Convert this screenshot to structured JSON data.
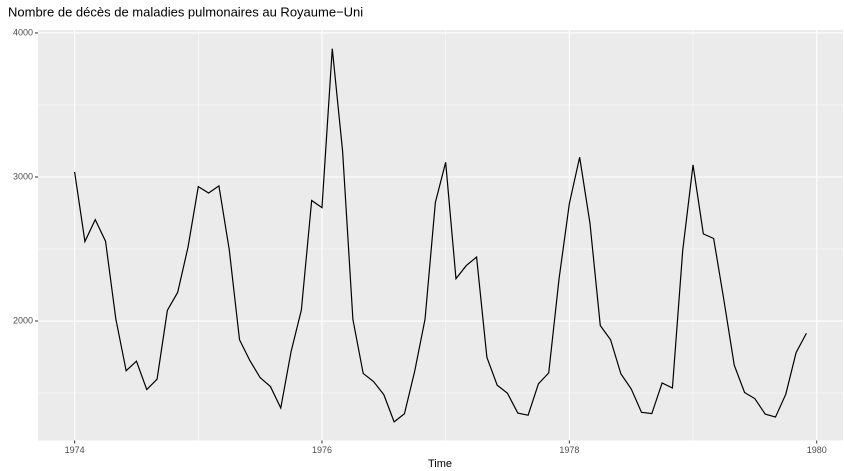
{
  "chart_data": {
    "type": "line",
    "title": "Nombre de décès de maladies pulmonaires au Royaume−Uni",
    "x_label": "Time",
    "x": [
      1974,
      1974.0833,
      1974.1667,
      1974.25,
      1974.3333,
      1974.4167,
      1974.5,
      1974.5833,
      1974.6667,
      1974.75,
      1974.8333,
      1974.9167,
      1975,
      1975.0833,
      1975.1667,
      1975.25,
      1975.3333,
      1975.4167,
      1975.5,
      1975.5833,
      1975.6667,
      1975.75,
      1975.8333,
      1975.9167,
      1976,
      1976.0833,
      1976.1667,
      1976.25,
      1976.3333,
      1976.4167,
      1976.5,
      1976.5833,
      1976.6667,
      1976.75,
      1976.8333,
      1976.9167,
      1977,
      1977.0833,
      1977.1667,
      1977.25,
      1977.3333,
      1977.4167,
      1977.5,
      1977.5833,
      1977.6667,
      1977.75,
      1977.8333,
      1977.9167,
      1978,
      1978.0833,
      1978.1667,
      1978.25,
      1978.3333,
      1978.4167,
      1978.5,
      1978.5833,
      1978.6667,
      1978.75,
      1978.8333,
      1978.9167,
      1979,
      1979.0833,
      1979.1667,
      1979.25,
      1979.3333,
      1979.4167,
      1979.5,
      1979.5833,
      1979.6667,
      1979.75,
      1979.8333,
      1979.9167
    ],
    "series": [
      {
        "color": "#000000",
        "values": [
          3035,
          2552,
          2704,
          2554,
          2014,
          1655,
          1721,
          1524,
          1596,
          2074,
          2199,
          2512,
          2933,
          2889,
          2938,
          2497,
          1870,
          1726,
          1607,
          1545,
          1396,
          1787,
          2076,
          2837,
          2787,
          3891,
          3179,
          2011,
          1636,
          1580,
          1489,
          1300,
          1356,
          1653,
          2013,
          2823,
          3102,
          2294,
          2385,
          2444,
          1748,
          1554,
          1498,
          1361,
          1346,
          1564,
          1640,
          2293,
          2815,
          3137,
          2679,
          1969,
          1870,
          1633,
          1529,
          1366,
          1357,
          1570,
          1535,
          2491,
          3084,
          2605,
          2573,
          2143,
          1693,
          1504,
          1461,
          1354,
          1333,
          1492,
          1781,
          1915
        ]
      }
    ],
    "xlim": [
      1973.704,
      1980.2125
    ],
    "xticks": [
      1974,
      1976,
      1978,
      1980
    ],
    "x_minor_ticks": [
      1975,
      1977,
      1979
    ],
    "ylim": [
      1170.45,
      4020.55
    ],
    "yticks": [
      2000,
      3000,
      4000
    ],
    "y_minor_ticks": [
      1500,
      2500,
      3500
    ],
    "grid": true,
    "panel_color": "#ebebeb"
  }
}
